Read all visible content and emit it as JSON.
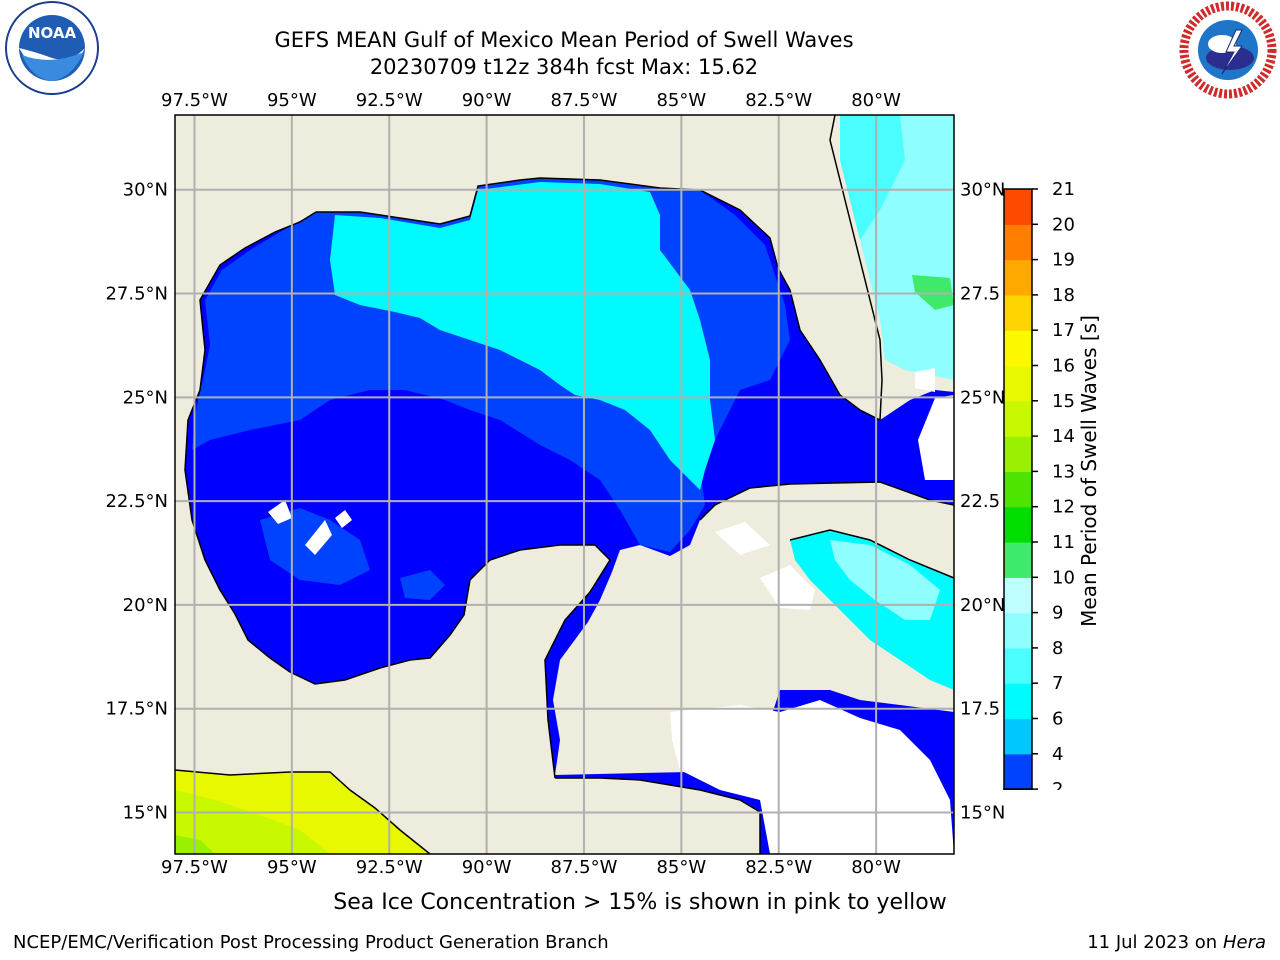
{
  "header": {
    "title_line1": "GEFS MEAN Gulf of Mexico Mean Period of Swell Waves",
    "title_line2": "20230709 t12z 384h fcst   Max: 15.62"
  },
  "logos": {
    "left": {
      "text": "NOAA",
      "ring_text": "NATIONAL OCEANIC AND ATMOSPHERIC ADMINISTRATION · U.S. DEPARTMENT OF COMMERCE",
      "icon": "noaa-logo"
    },
    "right": {
      "ring_text": "NATIONAL WEATHER SERVICE",
      "icon": "nws-logo"
    }
  },
  "map": {
    "lon_ticks": [
      "97.5°W",
      "95°W",
      "92.5°W",
      "90°W",
      "87.5°W",
      "85°W",
      "82.5°W",
      "80°W"
    ],
    "lat_ticks_left": [
      "30°N",
      "27.5°N",
      "25°N",
      "22.5°N",
      "20°N",
      "17.5°N",
      "15°N"
    ],
    "lat_ticks_right": [
      "30°N",
      "27.5",
      "25°N",
      "22.5",
      "20°N",
      "17.5",
      "15°N"
    ],
    "extent": {
      "lon_min": -98.0,
      "lon_max": -78.0,
      "lat_min": 14.0,
      "lat_max": 31.8
    },
    "colors": {
      "land": "#eeecdc",
      "grid": "#b0b0b0",
      "coast": "#000000"
    }
  },
  "colorbar": {
    "label": "Mean Period of Swell Waves [s]",
    "ticks": [
      "21",
      "20",
      "19",
      "18",
      "17",
      "16",
      "15",
      "14",
      "13",
      "12",
      "11",
      "10",
      "9",
      "8",
      "7",
      "6",
      "4",
      "2"
    ],
    "levels": [
      2,
      4,
      6,
      7,
      8,
      9,
      10,
      11,
      12,
      13,
      14,
      15,
      16,
      17,
      18,
      19,
      20,
      21
    ],
    "colors": [
      "#0043ff",
      "#00c8ff",
      "#00fbff",
      "#4afdff",
      "#8efffe",
      "#bfffff",
      "#3fea6a",
      "#00de00",
      "#4de400",
      "#99f000",
      "#c8f800",
      "#e8f800",
      "#fcf800",
      "#fed400",
      "#ffa800",
      "#ff7e00",
      "#ff4900",
      "#ff0000"
    ],
    "extend_color": "#0000ff"
  },
  "caption": "Sea Ice Concentration > 15% is shown in pink to yellow",
  "footer": {
    "left": "NCEP/EMC/Verification Post Processing Product Generation Branch",
    "date": "11 Jul 2023 on",
    "machine": "Hera"
  }
}
